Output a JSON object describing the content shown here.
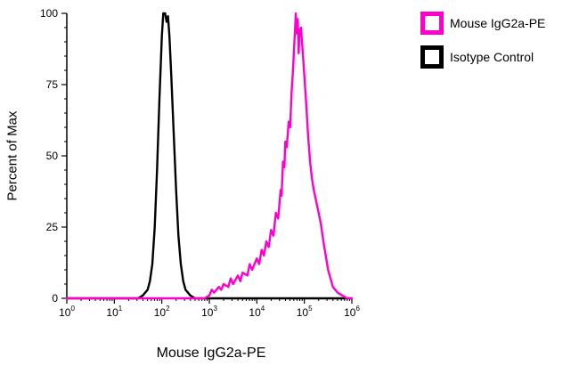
{
  "chart_data": {
    "type": "line",
    "subtype": "flow-cytometry-overlay-histogram",
    "title": "",
    "xlabel": "Mouse IgG2a-PE",
    "ylabel": "Percent of Max",
    "x_scale": "log10",
    "x_range_exponents": [
      0,
      6
    ],
    "ylim": [
      0,
      100
    ],
    "x_tick_exponents": [
      0,
      1,
      2,
      3,
      4,
      5,
      6
    ],
    "y_ticks": [
      0,
      25,
      50,
      75,
      100
    ],
    "grid": false,
    "legend_position": "top-right",
    "axis_color": "#000000",
    "series": [
      {
        "name": "Mouse IgG2a-PE",
        "color": "#ff00cc",
        "peak_log10_x": 4.82,
        "peak_percent_of_max": 100,
        "points": [
          [
            0,
            0
          ],
          [
            2.9,
            0
          ],
          [
            3.0,
            1
          ],
          [
            3.05,
            3
          ],
          [
            3.1,
            2
          ],
          [
            3.2,
            4
          ],
          [
            3.25,
            3
          ],
          [
            3.3,
            5
          ],
          [
            3.4,
            4
          ],
          [
            3.45,
            7
          ],
          [
            3.5,
            5
          ],
          [
            3.6,
            8
          ],
          [
            3.65,
            6
          ],
          [
            3.7,
            9
          ],
          [
            3.8,
            8
          ],
          [
            3.85,
            12
          ],
          [
            3.9,
            10
          ],
          [
            4.0,
            14
          ],
          [
            4.05,
            12
          ],
          [
            4.1,
            17
          ],
          [
            4.15,
            15
          ],
          [
            4.2,
            20
          ],
          [
            4.25,
            18
          ],
          [
            4.3,
            24
          ],
          [
            4.35,
            22
          ],
          [
            4.4,
            30
          ],
          [
            4.45,
            28
          ],
          [
            4.5,
            38
          ],
          [
            4.52,
            36
          ],
          [
            4.55,
            48
          ],
          [
            4.58,
            46
          ],
          [
            4.6,
            55
          ],
          [
            4.63,
            53
          ],
          [
            4.67,
            62
          ],
          [
            4.7,
            60
          ],
          [
            4.73,
            72
          ],
          [
            4.76,
            80
          ],
          [
            4.79,
            90
          ],
          [
            4.82,
            100
          ],
          [
            4.84,
            93
          ],
          [
            4.86,
            98
          ],
          [
            4.88,
            86
          ],
          [
            4.9,
            94
          ],
          [
            4.93,
            95
          ],
          [
            4.96,
            88
          ],
          [
            5.0,
            78
          ],
          [
            5.04,
            68
          ],
          [
            5.08,
            57
          ],
          [
            5.12,
            48
          ],
          [
            5.16,
            42
          ],
          [
            5.2,
            38
          ],
          [
            5.25,
            34
          ],
          [
            5.3,
            30
          ],
          [
            5.35,
            26
          ],
          [
            5.4,
            20
          ],
          [
            5.45,
            15
          ],
          [
            5.5,
            10
          ],
          [
            5.55,
            7
          ],
          [
            5.6,
            4
          ],
          [
            5.7,
            2
          ],
          [
            5.8,
            1
          ],
          [
            5.9,
            0
          ],
          [
            6,
            0
          ]
        ]
      },
      {
        "name": "Isotype Control",
        "color": "#000000",
        "peak_log10_x": 2.05,
        "peak_percent_of_max": 100,
        "points": [
          [
            0,
            0
          ],
          [
            1.5,
            0
          ],
          [
            1.6,
            1
          ],
          [
            1.7,
            3
          ],
          [
            1.75,
            6
          ],
          [
            1.8,
            12
          ],
          [
            1.85,
            25
          ],
          [
            1.9,
            45
          ],
          [
            1.95,
            70
          ],
          [
            2.0,
            92
          ],
          [
            2.03,
            100
          ],
          [
            2.07,
            100
          ],
          [
            2.1,
            97
          ],
          [
            2.13,
            99
          ],
          [
            2.16,
            92
          ],
          [
            2.2,
            78
          ],
          [
            2.25,
            58
          ],
          [
            2.3,
            38
          ],
          [
            2.35,
            22
          ],
          [
            2.4,
            12
          ],
          [
            2.45,
            6
          ],
          [
            2.5,
            3
          ],
          [
            2.6,
            1
          ],
          [
            2.7,
            0
          ],
          [
            6,
            0
          ]
        ]
      }
    ]
  },
  "legend": {
    "items": [
      {
        "label": "Mouse IgG2a-PE",
        "color": "#ff00cc"
      },
      {
        "label": "Isotype Control",
        "color": "#000000"
      }
    ]
  }
}
